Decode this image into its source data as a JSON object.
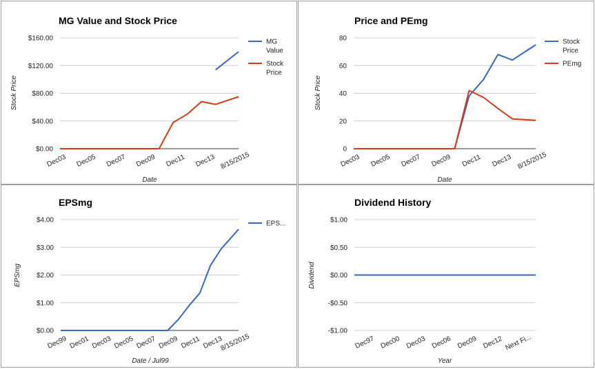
{
  "chart_data": [
    {
      "type": "line",
      "title": "MG Value and Stock Price",
      "xlabel": "Date",
      "ylabel": "Stock Price",
      "x_ticks": [
        "Dec03",
        "Dec05",
        "Dec07",
        "Dec09",
        "Dec11",
        "Dec13",
        "8/15/2015"
      ],
      "y_ticks": [
        "$0.00",
        "$40.00",
        "$80.00",
        "$120.00",
        "$160.00"
      ],
      "ylim": [
        0,
        160
      ],
      "grid": true,
      "legend_position": "right",
      "series": [
        {
          "name": "MG Value",
          "color": "#3366cc",
          "x": [
            "2014",
            "2015-08-15"
          ],
          "values": [
            114,
            140
          ]
        },
        {
          "name": "Stock Price",
          "color": "#dc3912",
          "x": [
            "2003",
            "2004",
            "2005",
            "2006",
            "2007",
            "2008",
            "2009",
            "2010",
            "2011",
            "2012",
            "2013",
            "2014",
            "2015-08-15"
          ],
          "values": [
            0,
            0,
            0,
            0,
            0,
            0,
            0,
            0,
            38,
            50,
            68,
            64,
            75
          ]
        }
      ]
    },
    {
      "type": "line",
      "title": "Price and PEmg",
      "xlabel": "Date",
      "ylabel": "Stock Price",
      "x_ticks": [
        "Dec03",
        "Dec05",
        "Dec07",
        "Dec09",
        "Dec11",
        "Dec13",
        "8/15/2015"
      ],
      "y_ticks": [
        "0",
        "20",
        "40",
        "60",
        "80"
      ],
      "ylim": [
        0,
        80
      ],
      "grid": true,
      "legend_position": "right",
      "series": [
        {
          "name": "Stock Price",
          "color": "#3366cc",
          "x": [
            "2003",
            "2004",
            "2005",
            "2006",
            "2007",
            "2008",
            "2009",
            "2010",
            "2011",
            "2012",
            "2013",
            "2014",
            "2015-08-15"
          ],
          "values": [
            0,
            0,
            0,
            0,
            0,
            0,
            0,
            0,
            38,
            50,
            68,
            64,
            75
          ]
        },
        {
          "name": "PEmg",
          "color": "#dc3912",
          "x": [
            "2003",
            "2004",
            "2005",
            "2006",
            "2007",
            "2008",
            "2009",
            "2010",
            "2011",
            "2012",
            "2013",
            "2014",
            "2015-08-15"
          ],
          "values": [
            0,
            0,
            0,
            0,
            0,
            0,
            0,
            0,
            42,
            37,
            29,
            21.5,
            20.5
          ]
        }
      ]
    },
    {
      "type": "line",
      "title": "EPSmg",
      "xlabel": "Date / Jul99",
      "ylabel": "EPSmg",
      "x_ticks": [
        "Dec99",
        "Dec01",
        "Dec03",
        "Dec05",
        "Dec07",
        "Dec09",
        "Dec11",
        "Dec13",
        "8/15/2015"
      ],
      "y_ticks": [
        "$0.00",
        "$1.00",
        "$2.00",
        "$3.00",
        "$4.00"
      ],
      "ylim": [
        0,
        4
      ],
      "grid": true,
      "legend_position": "right",
      "series": [
        {
          "name": "EPS...",
          "color": "#3366cc",
          "x": [
            "1999",
            "2000",
            "2001",
            "2002",
            "2003",
            "2004",
            "2005",
            "2006",
            "2007",
            "2008",
            "2009",
            "2010",
            "2011",
            "2012",
            "2013",
            "2014",
            "2015-08-15"
          ],
          "values": [
            0,
            0,
            0,
            0,
            0,
            0,
            0,
            0,
            0,
            0,
            0,
            0.4,
            0.9,
            1.35,
            2.35,
            2.95,
            3.65
          ]
        }
      ]
    },
    {
      "type": "line",
      "title": "Dividend History",
      "xlabel": "Year",
      "ylabel": "Dividend",
      "x_ticks": [
        "Dec97",
        "Dec00",
        "Dec03",
        "Dec06",
        "Dec09",
        "Dec12",
        "Next Fi..."
      ],
      "y_ticks": [
        "-$1.00",
        "-$0.50",
        "$0.00",
        "$0.50",
        "$1.00"
      ],
      "ylim": [
        -1,
        1
      ],
      "grid": true,
      "legend_position": "none",
      "series": [
        {
          "color": "#3366cc",
          "x": [
            "1996",
            "2016"
          ],
          "values": [
            0,
            0
          ]
        }
      ]
    }
  ]
}
